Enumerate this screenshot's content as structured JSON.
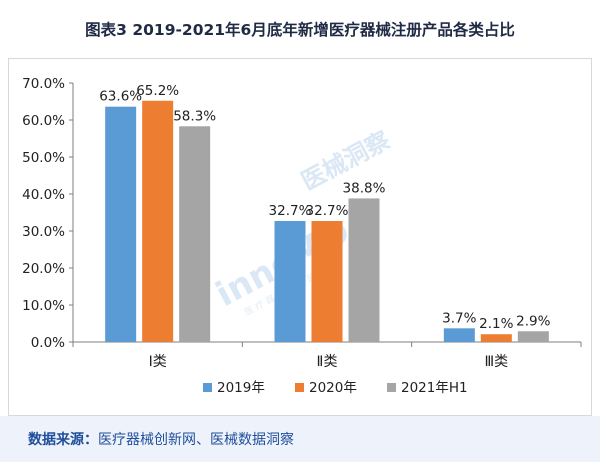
{
  "header": {
    "title": "图表3 2019-2021年6月底年新增医疗器械注册产品各类占比"
  },
  "watermark": {
    "brand": "innoMD",
    "name": "医械洞察",
    "sub": "医 疗 器 械 创 新 网"
  },
  "footer": {
    "label": "数据来源：",
    "text": "医疗器械创新网、医械数据洞察"
  },
  "colors": {
    "series": [
      "#5b9bd5",
      "#ed7d31",
      "#a5a5a5"
    ]
  },
  "chart_data": {
    "type": "bar",
    "categories": [
      "Ⅰ类",
      "Ⅱ类",
      "Ⅲ类"
    ],
    "series": [
      {
        "name": "2019年",
        "values": [
          63.6,
          32.7,
          3.7
        ]
      },
      {
        "name": "2020年",
        "values": [
          65.2,
          32.7,
          2.1
        ]
      },
      {
        "name": "2021年H1",
        "values": [
          58.3,
          38.8,
          2.9
        ]
      }
    ],
    "yticks": [
      "0.0%",
      "10.0%",
      "20.0%",
      "30.0%",
      "40.0%",
      "50.0%",
      "60.0%",
      "70.0%"
    ],
    "ylim": [
      0,
      70
    ],
    "data_labels": [
      [
        "63.6%",
        "65.2%",
        "58.3%"
      ],
      [
        "32.7%",
        "32.7%",
        "38.8%"
      ],
      [
        "3.7%",
        "2.1%",
        "2.9%"
      ]
    ],
    "legend_position": "bottom",
    "grid": false
  }
}
